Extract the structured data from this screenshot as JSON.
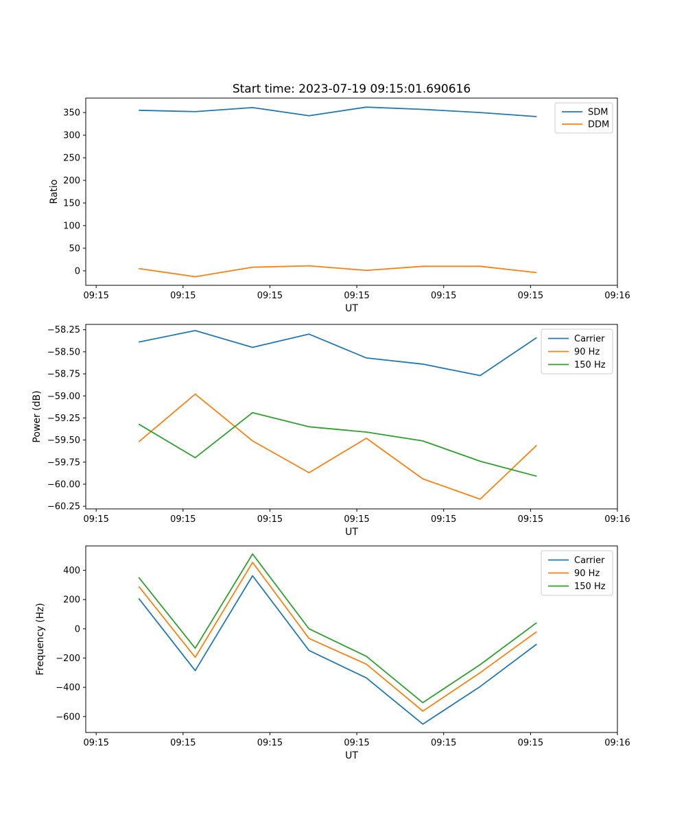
{
  "figure": {
    "title": "Start time: 2023-07-19 09:15:01.690616",
    "background": "#ffffff",
    "text_color": "#000000"
  },
  "palette": {
    "blue": "#1f77b4",
    "orange": "#ff7f0e",
    "green": "#2ca02c",
    "spine": "#000000",
    "legend_border": "#cccccc",
    "legend_fill": "#ffffff"
  },
  "chart_data": [
    {
      "type": "line",
      "title": "Start time: 2023-07-19 09:15:01.690616",
      "xlabel": "UT",
      "ylabel": "Ratio",
      "grid": false,
      "legend_position": "upper right",
      "legend_entries": [
        "SDM",
        "DDM"
      ],
      "x_seconds": [
        4.9,
        11.4,
        18.0,
        24.5,
        31.1,
        37.6,
        44.2,
        50.7
      ],
      "xlim_seconds": [
        -1.2,
        60
      ],
      "xtick_seconds": [
        0,
        10,
        20,
        30,
        40,
        50,
        60
      ],
      "xtick_labels": [
        "09:15",
        "09:15",
        "09:15",
        "09:15",
        "09:15",
        "09:15",
        "09:16"
      ],
      "ylim": [
        -32,
        382
      ],
      "ytick_values": [
        0,
        50,
        100,
        150,
        200,
        250,
        300,
        350
      ],
      "ytick_labels": [
        "0",
        "50",
        "100",
        "150",
        "200",
        "250",
        "300",
        "350"
      ],
      "series": [
        {
          "name": "SDM",
          "color": "#1f77b4",
          "values": [
            355,
            352,
            361,
            343,
            362,
            357,
            350,
            341
          ]
        },
        {
          "name": "DDM",
          "color": "#ff7f0e",
          "values": [
            5,
            -13,
            8,
            11,
            1,
            10,
            10,
            -4
          ]
        }
      ]
    },
    {
      "type": "line",
      "title": "",
      "xlabel": "UT",
      "ylabel": "Power (dB)",
      "grid": false,
      "legend_position": "upper right",
      "legend_entries": [
        "Carrier",
        "90 Hz",
        "150 Hz"
      ],
      "x_seconds": [
        4.9,
        11.4,
        18.0,
        24.5,
        31.1,
        37.6,
        44.2,
        50.7
      ],
      "xlim_seconds": [
        -1.2,
        60
      ],
      "xtick_seconds": [
        0,
        10,
        20,
        30,
        40,
        50,
        60
      ],
      "xtick_labels": [
        "09:15",
        "09:15",
        "09:15",
        "09:15",
        "09:15",
        "09:15",
        "09:16"
      ],
      "ylim": [
        -60.28,
        -58.19
      ],
      "ytick_values": [
        -58.25,
        -58.5,
        -58.75,
        -59.0,
        -59.25,
        -59.5,
        -59.75,
        -60.0,
        -60.25
      ],
      "ytick_labels": [
        "−58.25",
        "−58.50",
        "−58.75",
        "−59.00",
        "−59.25",
        "−59.50",
        "−59.75",
        "−60.00",
        "−60.25"
      ],
      "series": [
        {
          "name": "Carrier",
          "color": "#1f77b4",
          "values": [
            -58.39,
            -58.26,
            -58.45,
            -58.3,
            -58.57,
            -58.64,
            -58.77,
            -58.34
          ]
        },
        {
          "name": "90 Hz",
          "color": "#ff7f0e",
          "values": [
            -59.52,
            -58.98,
            -59.51,
            -59.87,
            -59.48,
            -59.94,
            -60.17,
            -59.56
          ]
        },
        {
          "name": "150 Hz",
          "color": "#2ca02c",
          "values": [
            -59.32,
            -59.7,
            -59.19,
            -59.35,
            -59.41,
            -59.51,
            -59.74,
            -59.91
          ]
        }
      ]
    },
    {
      "type": "line",
      "title": "",
      "xlabel": "UT",
      "ylabel": "Frequency (Hz)",
      "grid": false,
      "legend_position": "upper right",
      "legend_entries": [
        "Carrier",
        "90 Hz",
        "150 Hz"
      ],
      "x_seconds": [
        4.9,
        11.4,
        18.0,
        24.5,
        31.1,
        37.6,
        44.2,
        50.7
      ],
      "xlim_seconds": [
        -1.2,
        60
      ],
      "xtick_seconds": [
        0,
        10,
        20,
        30,
        40,
        50,
        60
      ],
      "xtick_labels": [
        "09:15",
        "09:15",
        "09:15",
        "09:15",
        "09:15",
        "09:15",
        "09:16"
      ],
      "ylim": [
        -709,
        567
      ],
      "ytick_values": [
        400,
        200,
        0,
        -200,
        -400,
        -600
      ],
      "ytick_labels": [
        "400",
        "200",
        "0",
        "−200",
        "−400",
        "−600"
      ],
      "series": [
        {
          "name": "Carrier",
          "color": "#1f77b4",
          "values": [
            208,
            -286,
            363,
            -148,
            -336,
            -652,
            -395,
            -105
          ]
        },
        {
          "name": "90 Hz",
          "color": "#ff7f0e",
          "values": [
            290,
            -195,
            454,
            -66,
            -242,
            -563,
            -300,
            -20
          ]
        },
        {
          "name": "150 Hz",
          "color": "#2ca02c",
          "values": [
            352,
            -133,
            512,
            0,
            -188,
            -505,
            -245,
            42
          ]
        }
      ]
    }
  ]
}
